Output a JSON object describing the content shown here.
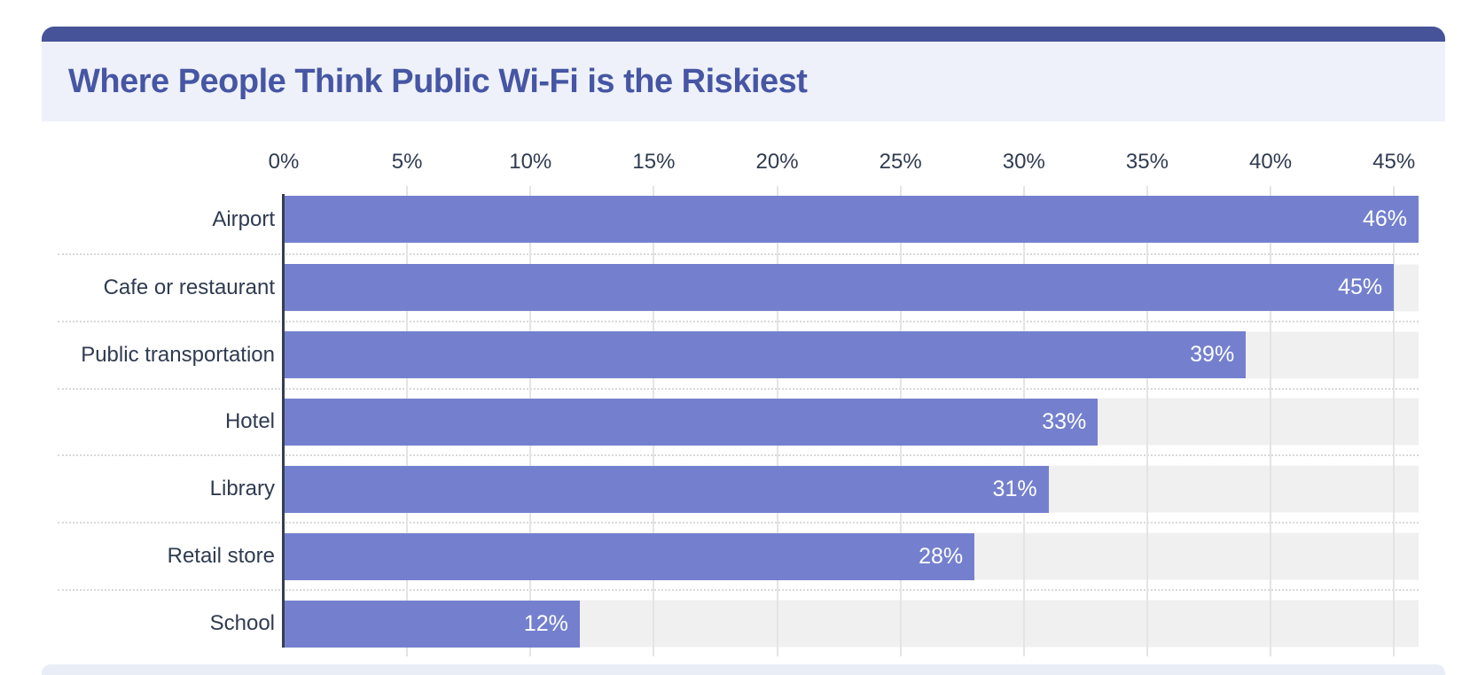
{
  "header": {
    "title": "Where People Think Public Wi-Fi is the Riskiest"
  },
  "chart_data": {
    "type": "bar",
    "orientation": "horizontal",
    "title": "Where People Think Public Wi-Fi is the Riskiest",
    "categories": [
      "Airport",
      "Cafe or restaurant",
      "Public transportation",
      "Hotel",
      "Library",
      "Retail store",
      "School"
    ],
    "values": [
      46,
      45,
      39,
      33,
      31,
      28,
      12
    ],
    "value_labels": [
      "46%",
      "45%",
      "39%",
      "33%",
      "31%",
      "28%",
      "12%"
    ],
    "axis_ticks": [
      "0%",
      "5%",
      "10%",
      "15%",
      "20%",
      "25%",
      "30%",
      "35%",
      "40%",
      "45%"
    ],
    "axis_tick_values": [
      0,
      5,
      10,
      15,
      20,
      25,
      30,
      35,
      40,
      45
    ],
    "xlim": [
      0,
      46
    ],
    "xlabel": "",
    "ylabel": "",
    "grid": true,
    "legend": "none",
    "colors": {
      "bar": "#7480CE",
      "topbar": "#465399",
      "header_bg": "#EEF1F9",
      "title": "#4656A4",
      "text": "#2F3B50",
      "track": "#F0F0F0",
      "gridline": "#E4E4E4",
      "dotted_separator": "#D9D9D9",
      "axis_line": "#353E52",
      "bottom_strip": "#E9EEF6",
      "value_text": "#FFFFFF"
    }
  }
}
